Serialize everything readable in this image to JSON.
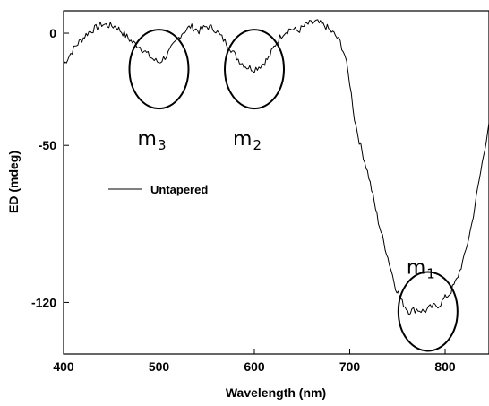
{
  "chart_data": {
    "type": "line",
    "title": "",
    "xlabel": "Wavelength (nm)",
    "ylabel": "ED (mdeg)",
    "xlim": [
      400,
      846
    ],
    "ylim": [
      -143,
      10
    ],
    "x_ticks": [
      400,
      500,
      600,
      700,
      800
    ],
    "y_ticks": [
      0,
      -50,
      -120
    ],
    "grid": false,
    "legend": {
      "position": "left",
      "entries": [
        {
          "label": "Untapered"
        }
      ]
    },
    "series": [
      {
        "name": "Untapered",
        "x": [
          400,
          412,
          425,
          440,
          455,
          465,
          472,
          480,
          487,
          495,
          500,
          508,
          516,
          524,
          533,
          542,
          550,
          558,
          566,
          574,
          580,
          586,
          592,
          600,
          608,
          615,
          622,
          630,
          638,
          646,
          655,
          665,
          675,
          685,
          690,
          695,
          700,
          705,
          710,
          720,
          730,
          740,
          748,
          755,
          762,
          770,
          778,
          786,
          794,
          800,
          805,
          812,
          820,
          828,
          836,
          846
        ],
        "y": [
          -14,
          -6,
          0,
          4,
          3,
          -1,
          -4,
          -6,
          -9,
          -12,
          -13,
          -10,
          -5,
          0,
          3,
          1,
          3,
          2,
          -2,
          -6,
          -10,
          -13,
          -15,
          -16,
          -14,
          -11,
          -5,
          0,
          2,
          1,
          4,
          5,
          3,
          -1,
          -4,
          -10,
          -22,
          -38,
          -48,
          -64,
          -84,
          -100,
          -113,
          -120,
          -124,
          -123,
          -124,
          -122,
          -121,
          -118,
          -116,
          -110,
          -100,
          -85,
          -65,
          -40
        ]
      }
    ],
    "annotations": [
      {
        "label": "m",
        "sub": "3",
        "center_x": 500,
        "center_y": -16
      },
      {
        "label": "m",
        "sub": "2",
        "center_x": 600,
        "center_y": -16
      },
      {
        "label": "m",
        "sub": "1",
        "center_x": 782,
        "center_y": -124
      }
    ]
  }
}
